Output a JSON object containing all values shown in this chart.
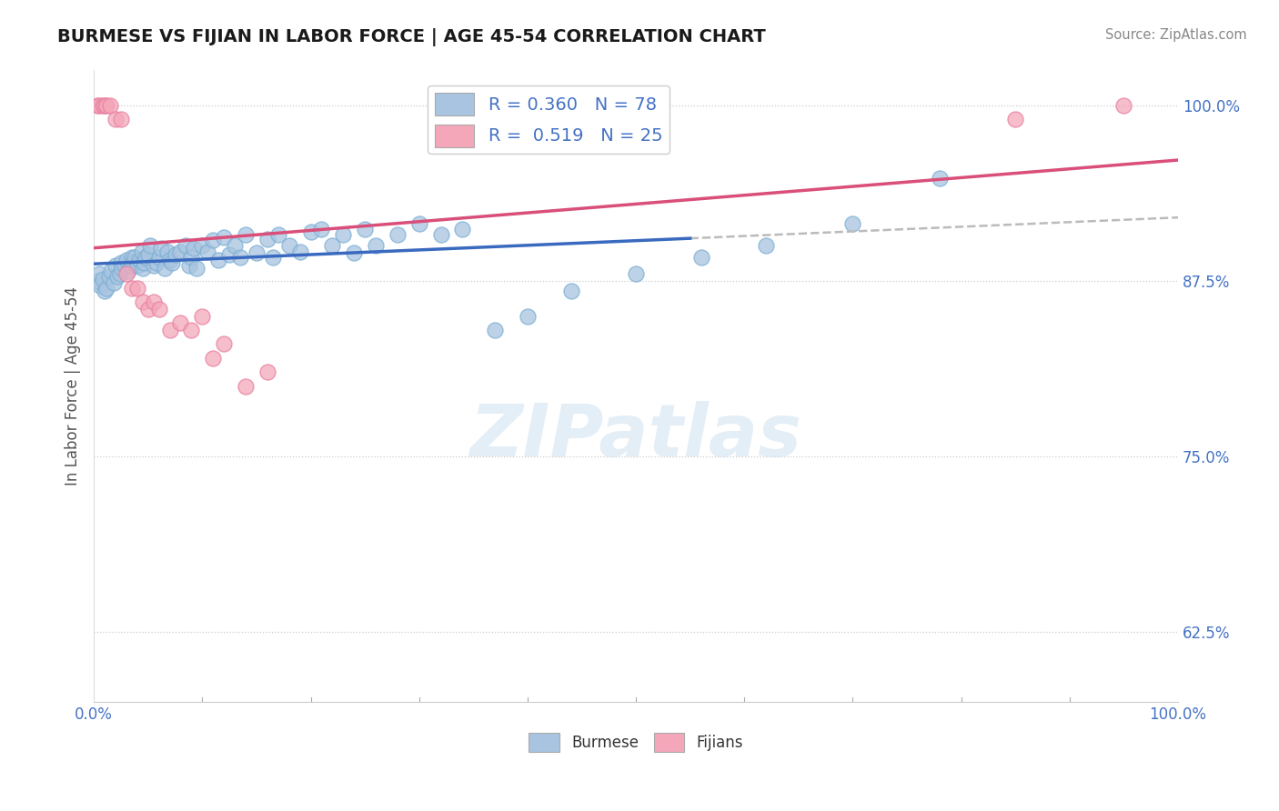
{
  "title": "BURMESE VS FIJIAN IN LABOR FORCE | AGE 45-54 CORRELATION CHART",
  "source_text": "Source: ZipAtlas.com",
  "ylabel": "In Labor Force | Age 45-54",
  "xlim": [
    0.0,
    1.0
  ],
  "ylim": [
    0.575,
    1.025
  ],
  "y_ticks": [
    0.625,
    0.75,
    0.875,
    1.0
  ],
  "y_tick_labels": [
    "62.5%",
    "75.0%",
    "87.5%",
    "100.0%"
  ],
  "burmese_color": "#a8c4e0",
  "burmese_edge_color": "#7aafd4",
  "fijian_color": "#f4a7b9",
  "fijian_edge_color": "#e87fa0",
  "burmese_R": 0.36,
  "burmese_N": 78,
  "fijian_R": 0.519,
  "fijian_N": 25,
  "burmese_line_color": "#3a6abf",
  "fijian_line_color": "#d94f7a",
  "dash_line_color": "#bbbbbb",
  "legend_R_color": "#4472c4",
  "watermark_text": "ZIPatlas",
  "burmese_x": [
    0.003,
    0.005,
    0.006,
    0.008,
    0.01,
    0.012,
    0.014,
    0.016,
    0.018,
    0.02,
    0.022,
    0.024,
    0.025,
    0.026,
    0.028,
    0.03,
    0.032,
    0.034,
    0.035,
    0.036,
    0.038,
    0.04,
    0.042,
    0.044,
    0.045,
    0.046,
    0.048,
    0.05,
    0.052,
    0.055,
    0.058,
    0.06,
    0.062,
    0.065,
    0.068,
    0.07,
    0.072,
    0.075,
    0.08,
    0.085,
    0.088,
    0.09,
    0.092,
    0.095,
    0.1,
    0.105,
    0.11,
    0.115,
    0.12,
    0.125,
    0.13,
    0.135,
    0.14,
    0.15,
    0.16,
    0.165,
    0.17,
    0.18,
    0.19,
    0.2,
    0.21,
    0.22,
    0.23,
    0.24,
    0.25,
    0.26,
    0.28,
    0.3,
    0.32,
    0.34,
    0.37,
    0.4,
    0.44,
    0.5,
    0.56,
    0.62,
    0.7,
    0.78
  ],
  "burmese_y": [
    0.875,
    0.88,
    0.872,
    0.876,
    0.868,
    0.87,
    0.878,
    0.882,
    0.874,
    0.886,
    0.878,
    0.88,
    0.888,
    0.884,
    0.886,
    0.89,
    0.882,
    0.886,
    0.892,
    0.888,
    0.892,
    0.886,
    0.89,
    0.896,
    0.884,
    0.888,
    0.892,
    0.894,
    0.9,
    0.886,
    0.888,
    0.892,
    0.898,
    0.884,
    0.896,
    0.89,
    0.888,
    0.894,
    0.896,
    0.9,
    0.886,
    0.892,
    0.898,
    0.884,
    0.9,
    0.896,
    0.904,
    0.89,
    0.906,
    0.894,
    0.9,
    0.892,
    0.908,
    0.895,
    0.905,
    0.892,
    0.908,
    0.9,
    0.896,
    0.91,
    0.912,
    0.9,
    0.908,
    0.895,
    0.912,
    0.9,
    0.908,
    0.916,
    0.908,
    0.912,
    0.84,
    0.85,
    0.868,
    0.88,
    0.892,
    0.9,
    0.916,
    0.948
  ],
  "fijian_x": [
    0.003,
    0.005,
    0.008,
    0.01,
    0.012,
    0.015,
    0.02,
    0.025,
    0.03,
    0.035,
    0.04,
    0.045,
    0.05,
    0.055,
    0.06,
    0.07,
    0.08,
    0.09,
    0.1,
    0.11,
    0.12,
    0.14,
    0.16,
    0.85,
    0.95
  ],
  "fijian_y": [
    1.0,
    1.0,
    1.0,
    1.0,
    1.0,
    1.0,
    0.99,
    0.99,
    0.88,
    0.87,
    0.87,
    0.86,
    0.855,
    0.86,
    0.855,
    0.84,
    0.845,
    0.84,
    0.85,
    0.82,
    0.83,
    0.8,
    0.81,
    0.99,
    1.0
  ]
}
